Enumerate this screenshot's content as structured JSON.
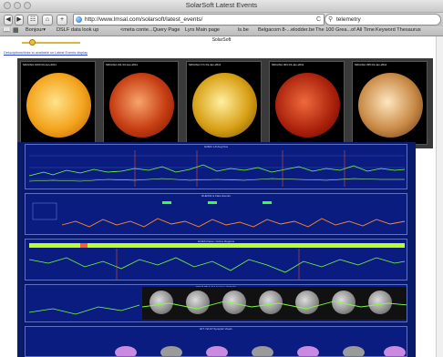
{
  "window": {
    "title": "SolarSoft Latest Events"
  },
  "toolbar": {
    "back": "◀",
    "forward": "▶",
    "sidebar": "☷",
    "home": "⌂",
    "add": "+",
    "url": "http://www.lmsal.com/solarsoft/latest_events/",
    "reload": "C",
    "search_value": "telemetry"
  },
  "bookmarks": [
    "Bonjour▾",
    "DSLF data look up",
    "<meta conte...Query Page",
    "Lyrs Main page",
    "ls.be",
    "Belgacom 8-...elodder.be",
    "The 100 Grea...of All Time",
    "Keyword Thesaurus"
  ],
  "page": {
    "title": "SolarSoft",
    "link": "Descriptions/links to available on Latest Events display",
    "sun_images": [
      {
        "label": "SDO/AIA 1600 03-Jan-2011",
        "color": "orange"
      },
      {
        "label": "SDO/AIA 211 03-Jan-2011",
        "color": "red"
      },
      {
        "label": "SDO/AIA 171 03-Jan-2011",
        "color": "gold"
      },
      {
        "label": "SDO/AIA 304 03-Jan-2011",
        "color": "red2"
      },
      {
        "label": "SDO/AIA 335 03-Jan-2011",
        "color": "bronze"
      }
    ],
    "panel_labels": [
      "GOES 1-8 Ang Flux",
      "RHESSI & Flare Events",
      "GOES Flares / Active Regions",
      "SDO/HMI & AIA Catalog (SOHO)",
      "EIT / EUVI Synoptic Views"
    ]
  }
}
